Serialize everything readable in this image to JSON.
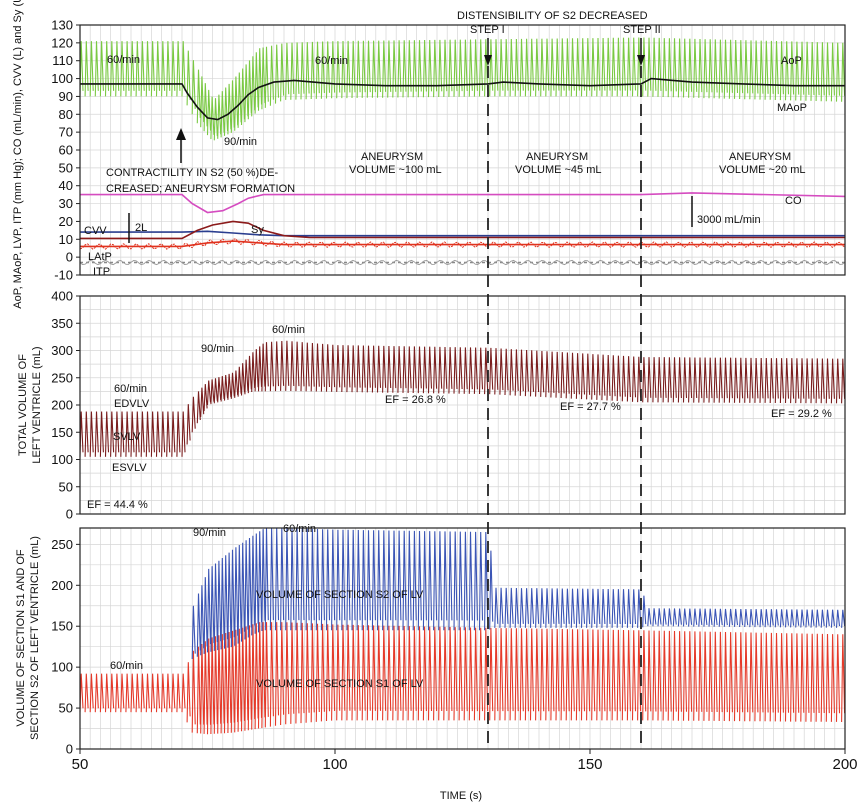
{
  "chart_data": [
    {
      "type": "line",
      "panel": "hemodynamics",
      "ylabel": "AoP, MAoP, LVP, ITP (mm Hg); CO (mL/min), CVV (L) and Sy (U)",
      "ylim": [
        -10,
        130
      ],
      "yticks": [
        "130",
        "120",
        "110",
        "100",
        "90",
        "80",
        "70",
        "60",
        "50",
        "40",
        "30",
        "20",
        "10",
        "0",
        "-10"
      ],
      "xlim": [
        50,
        200
      ],
      "grid": true,
      "series": [
        {
          "name": "AoP",
          "color": "#7ac943",
          "x": [
            50,
            70,
            73,
            76,
            80,
            85,
            90,
            100,
            130,
            160,
            200
          ],
          "y_max": [
            121,
            121,
            105,
            88,
            100,
            117,
            120,
            121,
            122,
            123,
            120
          ],
          "y_min": [
            90,
            90,
            75,
            65,
            70,
            82,
            88,
            89,
            90,
            90,
            87
          ]
        },
        {
          "name": "MAoP",
          "color": "#111111",
          "x": [
            50,
            70,
            71,
            73,
            75,
            77,
            79,
            81,
            83,
            85,
            88,
            92,
            100,
            110,
            120,
            130,
            133,
            140,
            150,
            160,
            162,
            170,
            180,
            190,
            200
          ],
          "y": [
            97,
            97,
            92,
            84,
            78,
            77,
            80,
            85,
            91,
            95,
            98,
            99,
            97,
            96,
            96,
            97,
            98,
            97,
            96,
            97,
            100,
            98,
            97,
            96,
            96
          ]
        },
        {
          "name": "CO",
          "color": "#d54cc0",
          "x": [
            50,
            70,
            72,
            75,
            78,
            81,
            83,
            86,
            90,
            100,
            130,
            160,
            170,
            200
          ],
          "y": [
            35,
            35,
            30,
            25,
            26,
            30,
            33,
            35,
            35,
            35,
            35,
            35,
            36,
            34
          ]
        },
        {
          "name": "CVV",
          "color": "#2a3e8f",
          "x": [
            50,
            70,
            75,
            80,
            85,
            90,
            100,
            130,
            160,
            200
          ],
          "y": [
            14,
            14,
            14.5,
            13.5,
            12.5,
            12,
            12,
            12,
            12,
            12
          ]
        },
        {
          "name": "Sy",
          "color": "#8b1a1a",
          "x": [
            50,
            70,
            73,
            76,
            80,
            83,
            86,
            90,
            95,
            100,
            130,
            160,
            200
          ],
          "y": [
            10.5,
            10.5,
            15,
            18,
            20,
            19,
            15,
            12,
            11,
            11,
            11,
            11,
            11
          ]
        },
        {
          "name": "LAtP",
          "color": "#e0321e",
          "x": [
            50,
            70,
            75,
            80,
            90,
            130,
            160,
            200
          ],
          "y": [
            6,
            6,
            8,
            9,
            7,
            7,
            7,
            7
          ]
        },
        {
          "name": "ITP",
          "color": "#888888",
          "x": [
            50,
            200
          ],
          "y": [
            -3,
            -3
          ]
        }
      ],
      "annotations": [
        "60/min",
        "60/min",
        "90/min",
        "AoP",
        "MAoP",
        "CO",
        "CVV",
        "Sy",
        "LAtP",
        "ITP",
        "2L",
        "3000 mL/min",
        "CONTRACTILITY IN S2 (50 %)DE-",
        "CREASED; ANEURYSM FORMATION",
        "ANEURYSM",
        "VOLUME ~100 mL",
        "ANEURYSM",
        "VOLUME ~45 mL",
        "ANEURYSM",
        "VOLUME ~20 mL"
      ],
      "events": {
        "title": "DISTENSIBILITY OF S2 DECREASED",
        "markers": [
          {
            "label": "STEP I",
            "x": 130
          },
          {
            "label": "STEP II",
            "x": 160
          }
        ]
      }
    },
    {
      "type": "line",
      "panel": "total-volume",
      "ylabel": "TOTAL VOLUME OF LEFT VENTRICLE (mL)",
      "ylim": [
        0,
        400
      ],
      "yticks": [
        "400",
        "350",
        "300",
        "250",
        "200",
        "150",
        "100",
        "50",
        "0"
      ],
      "xlim": [
        50,
        200
      ],
      "grid": true,
      "series": [
        {
          "name": "LV volume",
          "color": "#7a1e1e",
          "x": [
            50,
            70,
            72,
            75,
            80,
            84,
            86,
            90,
            100,
            130,
            160,
            200
          ],
          "y_max": [
            188,
            188,
            215,
            245,
            260,
            300,
            315,
            318,
            310,
            305,
            288,
            285
          ],
          "y_min": [
            105,
            105,
            150,
            200,
            212,
            225,
            225,
            226,
            224,
            220,
            205,
            203
          ]
        }
      ],
      "annotations": [
        "60/min",
        "EDVLV",
        "SVLV",
        "ESVLV",
        "90/min",
        "60/min",
        "EF = 44.4 %",
        "EF = 26.8 %",
        "EF = 27.7 %",
        "EF = 29.2 %"
      ]
    },
    {
      "type": "line",
      "panel": "section-volumes",
      "ylabel": "VOLUME OF SECTION S1 AND OF SECTION S2 OF LEFT VENTRICLE (mL)",
      "ylim": [
        0,
        270
      ],
      "yticks": [
        "250",
        "200",
        "150",
        "100",
        "50",
        "0"
      ],
      "xlim": [
        50,
        200
      ],
      "xlabel": "TIME (s)",
      "xticks": [
        "50",
        "100",
        "150",
        "200"
      ],
      "grid": true,
      "series": [
        {
          "name": "VOLUME OF SECTION S2 OF LV",
          "color": "#3b55b5",
          "x": [
            72,
            75,
            80,
            84,
            86,
            90,
            100,
            130,
            131,
            160,
            161,
            200
          ],
          "y_max": [
            175,
            220,
            245,
            262,
            270,
            270,
            268,
            265,
            197,
            195,
            172,
            170
          ],
          "y_min": [
            110,
            118,
            125,
            140,
            145,
            145,
            145,
            145,
            148,
            148,
            150,
            148
          ]
        },
        {
          "name": "VOLUME OF SECTION S1 OF LV",
          "color": "#e53a2a",
          "x": [
            50,
            70,
            72,
            75,
            80,
            85,
            90,
            100,
            130,
            160,
            200
          ],
          "y_max": [
            92,
            92,
            120,
            135,
            145,
            155,
            155,
            152,
            148,
            145,
            140
          ],
          "y_min": [
            45,
            45,
            20,
            18,
            20,
            25,
            30,
            35,
            35,
            35,
            33
          ]
        }
      ],
      "annotations": [
        "90/min",
        "60/min",
        "60/min",
        "VOLUME OF SECTION S2 OF LV",
        "VOLUME OF SECTION S1 OF LV"
      ]
    }
  ]
}
